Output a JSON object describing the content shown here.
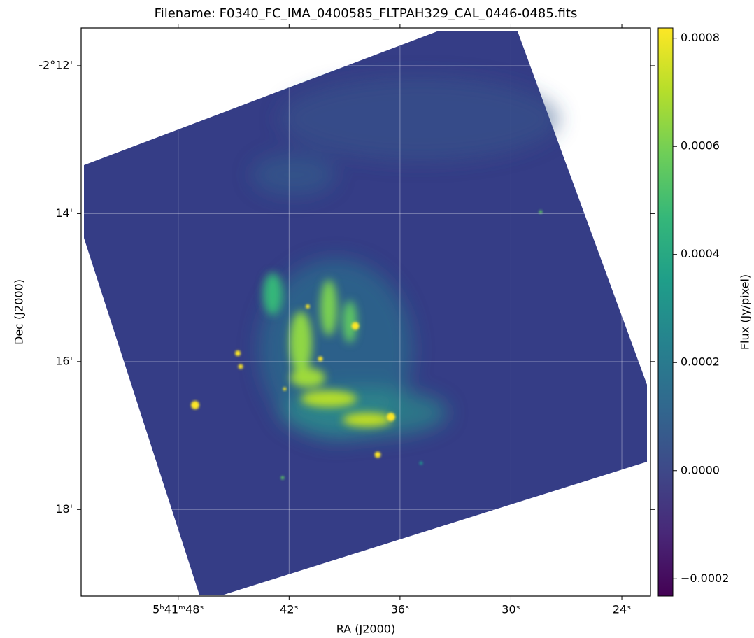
{
  "chart_data": {
    "type": "image",
    "title": "Filename: F0340_FC_IMA_0400585_FLTPAH329_CAL_0446-0485.fits",
    "x_label": "RA (J2000)",
    "y_label": "Dec (J2000)",
    "xlim": [
      53.25,
      22.45
    ],
    "xticks": [
      {
        "value": 48,
        "label": "5ʰ41ᵐ48ˢ"
      },
      {
        "value": 42,
        "label": "42ˢ"
      },
      {
        "value": 36,
        "label": "36ˢ"
      },
      {
        "value": 30,
        "label": "30ˢ"
      },
      {
        "value": 24,
        "label": "24ˢ"
      }
    ],
    "ylim": [
      19.17,
      11.49
    ],
    "yticks": [
      {
        "value": 12,
        "label": "-2°12'"
      },
      {
        "value": 14,
        "label": "14'"
      },
      {
        "value": 16,
        "label": "16'"
      },
      {
        "value": 18,
        "label": "18'"
      }
    ],
    "grid": true,
    "colorbar": {
      "label": "Flux (Jy/pixel)",
      "colormap": "viridis",
      "lim": [
        -0.000232,
        0.000819
      ],
      "ticks": [
        {
          "value": -0.0002,
          "label": "−0.0002"
        },
        {
          "value": 0,
          "label": "0.0000"
        },
        {
          "value": 0.0002,
          "label": "0.0002"
        },
        {
          "value": 0.0004,
          "label": "0.0004"
        },
        {
          "value": 0.0006,
          "label": "0.0006"
        },
        {
          "value": 0.0008,
          "label": "0.0008"
        }
      ]
    }
  }
}
